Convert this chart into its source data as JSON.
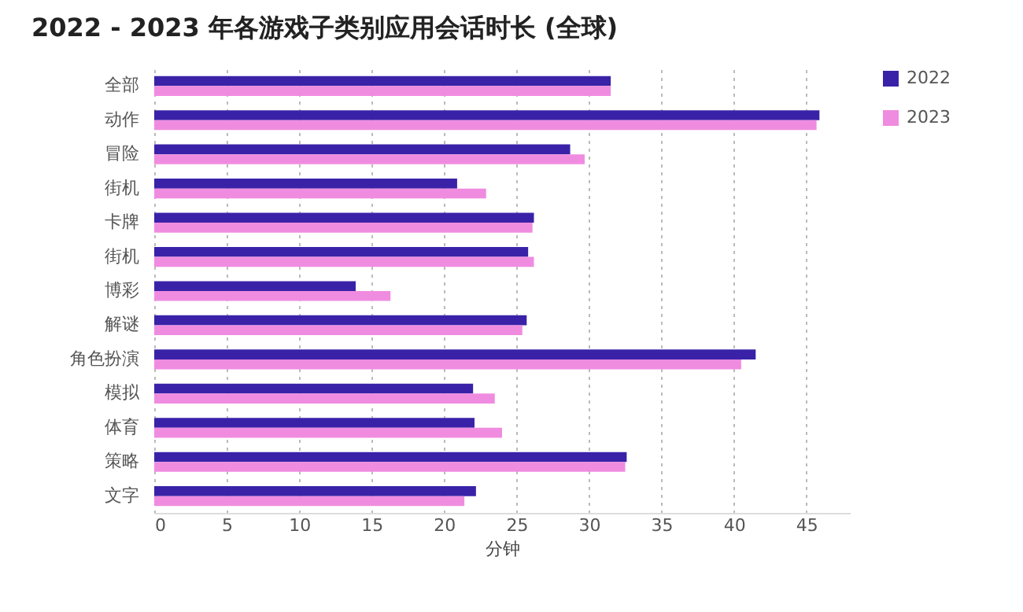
{
  "chart_data": {
    "type": "bar",
    "orientation": "horizontal",
    "title": "2022 - 2023 年各游戏子类别应用会话时长 (全球)",
    "xlabel": "分钟",
    "categories": [
      "全部",
      "动作",
      "冒险",
      "街机",
      "卡牌",
      "街机",
      "博彩",
      "解谜",
      "角色扮演",
      "模拟",
      "体育",
      "策略",
      "文字"
    ],
    "series": [
      {
        "name": "2022",
        "color": "#3a22a8",
        "values": [
          31.5,
          45.9,
          28.7,
          20.9,
          26.2,
          25.8,
          13.9,
          25.7,
          41.5,
          22.0,
          22.1,
          32.6,
          22.2
        ]
      },
      {
        "name": "2023",
        "color": "#f08ce0",
        "values": [
          31.5,
          45.7,
          29.7,
          22.9,
          26.1,
          26.2,
          16.3,
          25.4,
          40.5,
          23.5,
          24.0,
          32.5,
          21.4
        ]
      }
    ],
    "xlim": [
      0,
      48
    ],
    "xticks": [
      0,
      5,
      10,
      15,
      20,
      25,
      30,
      35,
      40,
      45
    ],
    "grid": "x",
    "legend": "top right"
  }
}
